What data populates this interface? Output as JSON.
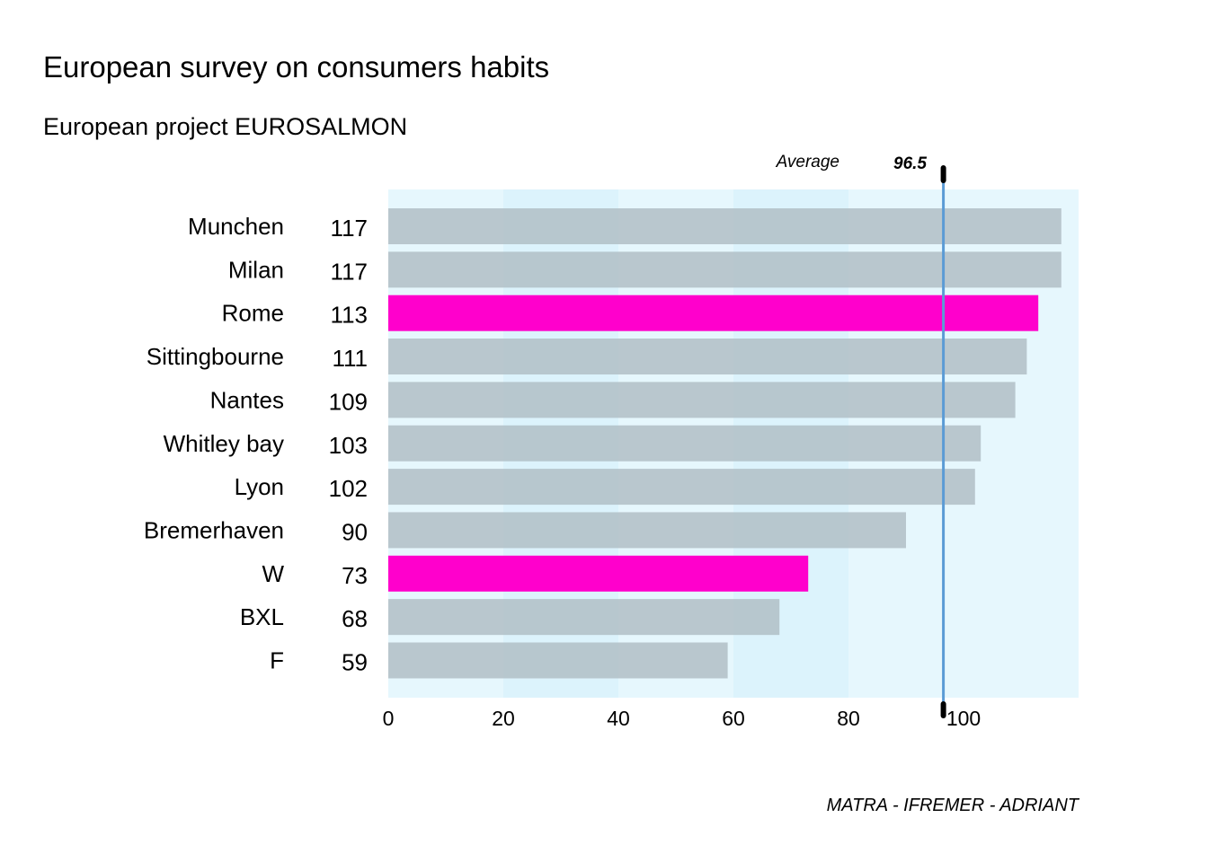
{
  "title": "European survey on consumers habits",
  "subtitle": "European project EUROSALMON",
  "caption": "MATRA - IFREMER - ADRIANT",
  "chart_data": {
    "type": "bar",
    "orientation": "horizontal",
    "categories": [
      "Munchen",
      "Milan",
      "Rome",
      "Sittingbourne",
      "Nantes",
      "Whitley bay",
      "Lyon",
      "Bremerhaven",
      "W",
      "BXL",
      "F"
    ],
    "values": [
      117,
      117,
      113,
      111,
      109,
      103,
      102,
      90,
      73,
      68,
      59
    ],
    "value_labels": [
      "117",
      "117",
      "113",
      "111",
      "109",
      "103",
      "102",
      "90",
      "73",
      "68",
      "59"
    ],
    "highlighted": [
      "Rome",
      "W"
    ],
    "xlim": [
      0,
      120
    ],
    "xticks": [
      0,
      20,
      40,
      60,
      80,
      100
    ],
    "xtick_labels": [
      "0",
      "20",
      "40",
      "60",
      "80",
      "100"
    ],
    "average": 96.5,
    "average_word": "Average",
    "average_label": "96.5",
    "grid": false,
    "colors": {
      "bar": "#b0bec5",
      "highlight": "#ff00cc",
      "band_light": "#e6f7fd",
      "band_mid": "#dcf3fc",
      "average_line": "#5b9bd5"
    }
  }
}
